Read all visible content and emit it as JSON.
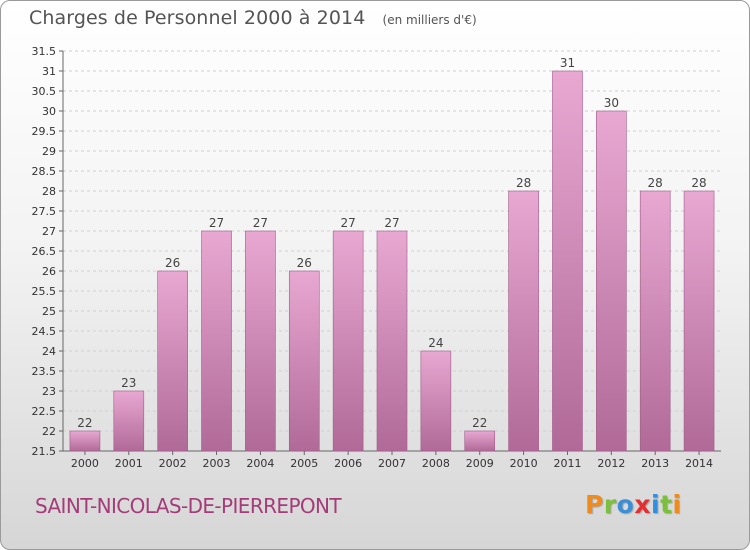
{
  "header": {
    "title": "Charges de Personnel 2000 à 2014",
    "subtitle": "(en milliers d'€)"
  },
  "footer": {
    "place": "SAINT-NICOLAS-DE-PIERREPONT",
    "logo_text": "Proxiti"
  },
  "colors": {
    "bar_top": "#e8a8d2",
    "bar_bottom": "#b16a98",
    "place_text": "#a53c79",
    "logo": [
      "#f08b1b",
      "#7bbf3b",
      "#3b8fd6",
      "#e32f2f",
      "#2f8fe3",
      "#7bbf3b",
      "#f08b1b"
    ]
  },
  "chart_data": {
    "type": "bar",
    "title": "Charges de Personnel 2000 à 2014",
    "subtitle": "(en milliers d'€)",
    "categories": [
      "2000",
      "2001",
      "2002",
      "2003",
      "2004",
      "2005",
      "2006",
      "2007",
      "2008",
      "2009",
      "2010",
      "2011",
      "2012",
      "2013",
      "2014"
    ],
    "values": [
      22,
      23,
      26,
      27,
      27,
      26,
      27,
      27,
      24,
      22,
      28,
      31,
      30,
      28,
      28
    ],
    "ylim": [
      21.5,
      31.5
    ],
    "yticks": [
      "21.5",
      "22",
      "22.5",
      "23",
      "23.5",
      "24",
      "24.5",
      "25",
      "25.5",
      "26",
      "26.5",
      "27",
      "27.5",
      "28",
      "28.5",
      "29",
      "29.5",
      "30",
      "30.5",
      "31",
      "31.5"
    ],
    "grid": true,
    "legend": "none"
  }
}
